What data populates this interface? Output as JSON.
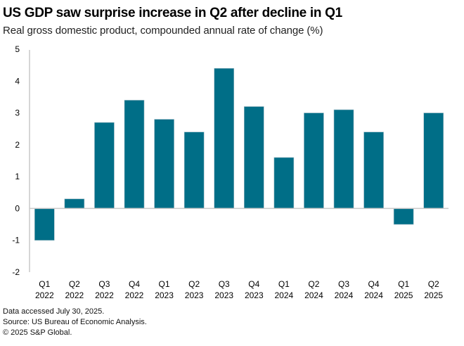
{
  "header": {
    "title": "US GDP saw surprise increase in Q2 after decline in Q1",
    "subtitle": "Real gross domestic product, compounded annual rate of change (%)"
  },
  "footer": {
    "lines": [
      "Data accessed July 30, 2025.",
      "Source: US Bureau of Economic Analysis.",
      "© 2025 S&P Global."
    ]
  },
  "chart_data": {
    "type": "bar",
    "title": "US GDP saw surprise increase in Q2 after decline in Q1",
    "subtitle": "Real gross domestic product, compounded annual rate of change (%)",
    "xlabel": "",
    "ylabel": "",
    "categories": [
      [
        "Q1",
        "2022"
      ],
      [
        "Q2",
        "2022"
      ],
      [
        "Q3",
        "2022"
      ],
      [
        "Q4",
        "2022"
      ],
      [
        "Q1",
        "2023"
      ],
      [
        "Q2",
        "2023"
      ],
      [
        "Q3",
        "2023"
      ],
      [
        "Q4",
        "2023"
      ],
      [
        "Q1",
        "2024"
      ],
      [
        "Q2",
        "2024"
      ],
      [
        "Q3",
        "2024"
      ],
      [
        "Q4",
        "2024"
      ],
      [
        "Q1",
        "2025"
      ],
      [
        "Q2",
        "2025"
      ]
    ],
    "values": [
      -1.0,
      0.3,
      2.7,
      3.4,
      2.8,
      2.4,
      4.4,
      3.2,
      1.6,
      3.0,
      3.1,
      2.4,
      -0.5,
      3.0
    ],
    "ylim": [
      -2,
      5
    ],
    "yticks": [
      5,
      4,
      3,
      2,
      1,
      0,
      -1,
      -2
    ],
    "grid": false,
    "legend": "none",
    "colors": {
      "bar": "#006e87",
      "axis": "#c8c8c8",
      "tick_label": "#000000"
    }
  }
}
